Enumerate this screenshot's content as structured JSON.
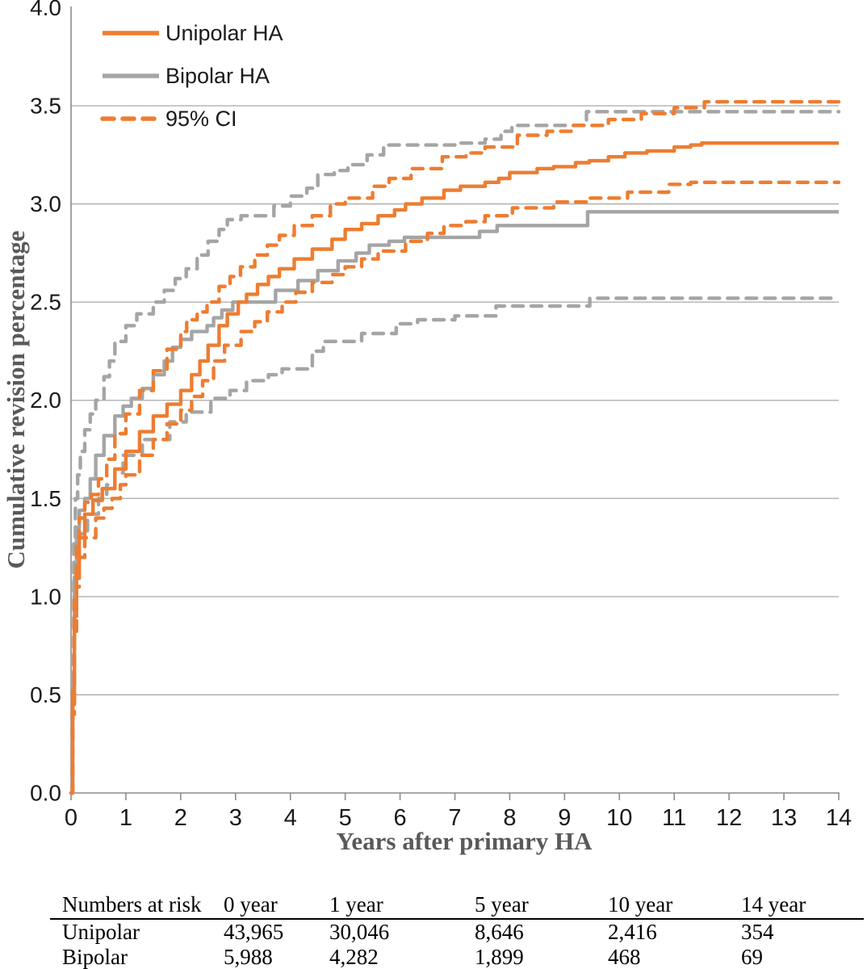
{
  "legend": {
    "items": [
      {
        "label": "Unipolar HA",
        "color": "#ED7D31",
        "dashed": false
      },
      {
        "label": "Bipolar HA",
        "color": "#A5A5A5",
        "dashed": false
      },
      {
        "label": "95% CI",
        "color": "#ED7D31",
        "dashed": true
      }
    ]
  },
  "colors": {
    "unipolar": "#ED7D31",
    "bipolar": "#A5A5A5",
    "gridline": "#A9A9A9",
    "axis": "#8C8C8C",
    "axis_title": "#595959"
  },
  "chart_data": {
    "type": "line",
    "step": true,
    "title": "",
    "xlabel": "Years after primary HA",
    "ylabel": "Cumulative revision percentage",
    "xlim": [
      0,
      14
    ],
    "ylim": [
      0.0,
      4.0
    ],
    "x_ticks": [
      0,
      1,
      2,
      3,
      4,
      5,
      6,
      7,
      8,
      9,
      10,
      11,
      12,
      13,
      14
    ],
    "y_ticks": [
      0.0,
      0.5,
      1.0,
      1.5,
      2.0,
      2.5,
      3.0,
      3.5,
      4.0
    ],
    "y_tick_labels": [
      "0.0",
      "0.5",
      "1.0",
      "1.5",
      "2.0",
      "2.5",
      "3.0",
      "3.5",
      "4.0"
    ],
    "grid": "horizontal",
    "legend_position": "top-left",
    "series": [
      {
        "name": "bipolar-upper-ci",
        "legend": "95% CI (Bipolar upper)",
        "color": "#A5A5A5",
        "dashed": true,
        "points": [
          [
            0,
            0
          ],
          [
            0.02,
            0.7
          ],
          [
            0.05,
            1.3
          ],
          [
            0.08,
            1.5
          ],
          [
            0.12,
            1.62
          ],
          [
            0.17,
            1.74
          ],
          [
            0.25,
            1.85
          ],
          [
            0.35,
            1.93
          ],
          [
            0.45,
            2.0
          ],
          [
            0.6,
            2.12
          ],
          [
            0.7,
            2.2
          ],
          [
            0.8,
            2.3
          ],
          [
            1.0,
            2.38
          ],
          [
            1.2,
            2.44
          ],
          [
            1.5,
            2.5
          ],
          [
            1.7,
            2.56
          ],
          [
            1.9,
            2.62
          ],
          [
            2.1,
            2.67
          ],
          [
            2.3,
            2.74
          ],
          [
            2.5,
            2.81
          ],
          [
            2.7,
            2.87
          ],
          [
            2.85,
            2.92
          ],
          [
            3.1,
            2.94
          ],
          [
            3.7,
            2.99
          ],
          [
            4.0,
            3.04
          ],
          [
            4.3,
            3.08
          ],
          [
            4.5,
            3.15
          ],
          [
            4.8,
            3.17
          ],
          [
            5.05,
            3.2
          ],
          [
            5.4,
            3.25
          ],
          [
            5.7,
            3.3
          ],
          [
            7.0,
            3.31
          ],
          [
            7.55,
            3.33
          ],
          [
            7.84,
            3.37
          ],
          [
            8.04,
            3.4
          ],
          [
            9.4,
            3.47
          ],
          [
            14,
            3.47
          ]
        ]
      },
      {
        "name": "bipolar-lower-ci",
        "legend": "95% CI (Bipolar lower)",
        "color": "#A5A5A5",
        "dashed": true,
        "points": [
          [
            0,
            0
          ],
          [
            0.03,
            0.5
          ],
          [
            0.06,
            0.95
          ],
          [
            0.1,
            1.18
          ],
          [
            0.15,
            1.32
          ],
          [
            0.3,
            1.42
          ],
          [
            0.5,
            1.5
          ],
          [
            0.65,
            1.57
          ],
          [
            0.8,
            1.63
          ],
          [
            0.95,
            1.72
          ],
          [
            1.3,
            1.8
          ],
          [
            1.8,
            1.89
          ],
          [
            2.1,
            1.94
          ],
          [
            2.55,
            2.01
          ],
          [
            2.9,
            2.05
          ],
          [
            3.2,
            2.1
          ],
          [
            3.6,
            2.13
          ],
          [
            3.85,
            2.16
          ],
          [
            4.4,
            2.25
          ],
          [
            4.6,
            2.3
          ],
          [
            5.3,
            2.34
          ],
          [
            5.93,
            2.39
          ],
          [
            6.32,
            2.41
          ],
          [
            7.0,
            2.43
          ],
          [
            7.75,
            2.48
          ],
          [
            9.46,
            2.52
          ],
          [
            14,
            2.52
          ]
        ]
      },
      {
        "name": "bipolar-ha",
        "legend": "Bipolar HA",
        "color": "#A5A5A5",
        "dashed": false,
        "points": [
          [
            0,
            0
          ],
          [
            0.03,
            0.6
          ],
          [
            0.06,
            1.1
          ],
          [
            0.1,
            1.35
          ],
          [
            0.15,
            1.44
          ],
          [
            0.25,
            1.5
          ],
          [
            0.35,
            1.6
          ],
          [
            0.45,
            1.72
          ],
          [
            0.6,
            1.82
          ],
          [
            0.8,
            1.92
          ],
          [
            0.95,
            1.97
          ],
          [
            1.1,
            2.01
          ],
          [
            1.3,
            2.06
          ],
          [
            1.5,
            2.13
          ],
          [
            1.7,
            2.2
          ],
          [
            1.85,
            2.27
          ],
          [
            2.0,
            2.31
          ],
          [
            2.2,
            2.35
          ],
          [
            2.48,
            2.38
          ],
          [
            2.6,
            2.42
          ],
          [
            2.75,
            2.46
          ],
          [
            2.95,
            2.5
          ],
          [
            3.73,
            2.56
          ],
          [
            4.14,
            2.61
          ],
          [
            4.5,
            2.66
          ],
          [
            4.87,
            2.71
          ],
          [
            5.2,
            2.75
          ],
          [
            5.44,
            2.79
          ],
          [
            5.8,
            2.81
          ],
          [
            6.08,
            2.83
          ],
          [
            7.45,
            2.86
          ],
          [
            7.77,
            2.89
          ],
          [
            9.42,
            2.96
          ],
          [
            14,
            2.96
          ]
        ]
      },
      {
        "name": "unipolar-upper-ci",
        "legend": "95% CI (Unipolar upper)",
        "color": "#ED7D31",
        "dashed": true,
        "points": [
          [
            0,
            0
          ],
          [
            0.03,
            0.55
          ],
          [
            0.06,
            1.0
          ],
          [
            0.1,
            1.28
          ],
          [
            0.15,
            1.4
          ],
          [
            0.25,
            1.48
          ],
          [
            0.37,
            1.52
          ],
          [
            0.5,
            1.6
          ],
          [
            0.65,
            1.7
          ],
          [
            0.8,
            1.83
          ],
          [
            1.0,
            1.93
          ],
          [
            1.25,
            2.05
          ],
          [
            1.5,
            2.15
          ],
          [
            1.75,
            2.26
          ],
          [
            2.0,
            2.35
          ],
          [
            2.11,
            2.41
          ],
          [
            2.3,
            2.45
          ],
          [
            2.48,
            2.5
          ],
          [
            2.7,
            2.58
          ],
          [
            2.9,
            2.63
          ],
          [
            3.09,
            2.68
          ],
          [
            3.35,
            2.74
          ],
          [
            3.58,
            2.79
          ],
          [
            3.8,
            2.84
          ],
          [
            4.07,
            2.89
          ],
          [
            4.4,
            2.94
          ],
          [
            4.73,
            3.0
          ],
          [
            5.0,
            3.03
          ],
          [
            5.5,
            3.09
          ],
          [
            5.8,
            3.13
          ],
          [
            6.2,
            3.18
          ],
          [
            6.77,
            3.24
          ],
          [
            7.2,
            3.26
          ],
          [
            7.55,
            3.29
          ],
          [
            8.14,
            3.35
          ],
          [
            8.68,
            3.37
          ],
          [
            9.12,
            3.4
          ],
          [
            9.8,
            3.43
          ],
          [
            10.4,
            3.46
          ],
          [
            11.0,
            3.49
          ],
          [
            11.55,
            3.52
          ],
          [
            14,
            3.52
          ]
        ]
      },
      {
        "name": "unipolar-lower-ci",
        "legend": "95% CI (Unipolar lower)",
        "color": "#ED7D31",
        "dashed": true,
        "points": [
          [
            0,
            0
          ],
          [
            0.03,
            0.4
          ],
          [
            0.06,
            0.8
          ],
          [
            0.1,
            1.05
          ],
          [
            0.15,
            1.2
          ],
          [
            0.25,
            1.3
          ],
          [
            0.45,
            1.4
          ],
          [
            0.6,
            1.45
          ],
          [
            0.75,
            1.5
          ],
          [
            0.9,
            1.57
          ],
          [
            1.0,
            1.62
          ],
          [
            1.25,
            1.72
          ],
          [
            1.5,
            1.8
          ],
          [
            1.75,
            1.88
          ],
          [
            2.0,
            1.95
          ],
          [
            2.2,
            2.02
          ],
          [
            2.4,
            2.1
          ],
          [
            2.6,
            2.2
          ],
          [
            2.8,
            2.28
          ],
          [
            3.1,
            2.35
          ],
          [
            3.35,
            2.4
          ],
          [
            3.58,
            2.45
          ],
          [
            3.85,
            2.5
          ],
          [
            4.1,
            2.55
          ],
          [
            4.4,
            2.6
          ],
          [
            4.76,
            2.64
          ],
          [
            5.0,
            2.68
          ],
          [
            5.3,
            2.72
          ],
          [
            5.6,
            2.76
          ],
          [
            6.1,
            2.81
          ],
          [
            6.5,
            2.85
          ],
          [
            6.8,
            2.89
          ],
          [
            7.2,
            2.91
          ],
          [
            7.55,
            2.94
          ],
          [
            8.05,
            2.98
          ],
          [
            8.8,
            3.01
          ],
          [
            9.45,
            3.03
          ],
          [
            10.15,
            3.06
          ],
          [
            10.9,
            3.1
          ],
          [
            11.3,
            3.11
          ],
          [
            14,
            3.11
          ]
        ]
      },
      {
        "name": "unipolar-ha",
        "legend": "Unipolar HA",
        "color": "#ED7D31",
        "dashed": false,
        "points": [
          [
            0,
            0
          ],
          [
            0.03,
            0.45
          ],
          [
            0.06,
            0.9
          ],
          [
            0.1,
            1.15
          ],
          [
            0.15,
            1.3
          ],
          [
            0.25,
            1.42
          ],
          [
            0.4,
            1.49
          ],
          [
            0.57,
            1.55
          ],
          [
            0.8,
            1.65
          ],
          [
            1.0,
            1.74
          ],
          [
            1.25,
            1.84
          ],
          [
            1.5,
            1.92
          ],
          [
            1.75,
            1.98
          ],
          [
            2.0,
            2.05
          ],
          [
            2.2,
            2.13
          ],
          [
            2.35,
            2.2
          ],
          [
            2.5,
            2.28
          ],
          [
            2.7,
            2.38
          ],
          [
            2.85,
            2.44
          ],
          [
            3.05,
            2.5
          ],
          [
            3.2,
            2.54
          ],
          [
            3.4,
            2.59
          ],
          [
            3.6,
            2.63
          ],
          [
            3.8,
            2.67
          ],
          [
            4.07,
            2.72
          ],
          [
            4.4,
            2.77
          ],
          [
            4.76,
            2.82
          ],
          [
            5.0,
            2.87
          ],
          [
            5.3,
            2.9
          ],
          [
            5.6,
            2.94
          ],
          [
            5.9,
            2.97
          ],
          [
            6.1,
            3.0
          ],
          [
            6.4,
            3.03
          ],
          [
            6.8,
            3.07
          ],
          [
            7.1,
            3.09
          ],
          [
            7.55,
            3.11
          ],
          [
            7.8,
            3.13
          ],
          [
            8.0,
            3.16
          ],
          [
            8.5,
            3.18
          ],
          [
            8.8,
            3.19
          ],
          [
            9.2,
            3.21
          ],
          [
            9.45,
            3.22
          ],
          [
            9.8,
            3.24
          ],
          [
            10.1,
            3.26
          ],
          [
            10.5,
            3.27
          ],
          [
            11.0,
            3.29
          ],
          [
            11.3,
            3.3
          ],
          [
            11.5,
            3.31
          ],
          [
            14,
            3.31
          ]
        ]
      }
    ]
  },
  "risk_table": {
    "headers": [
      "Numbers at risk",
      "0 year",
      "1 year",
      "5 year",
      "10 year",
      "14 year"
    ],
    "rows": [
      [
        "Unipolar",
        "43,965",
        "30,046",
        "8,646",
        "2,416",
        "354"
      ],
      [
        "Bipolar",
        "5,988",
        "4,282",
        "1,899",
        "468",
        "69"
      ]
    ]
  }
}
